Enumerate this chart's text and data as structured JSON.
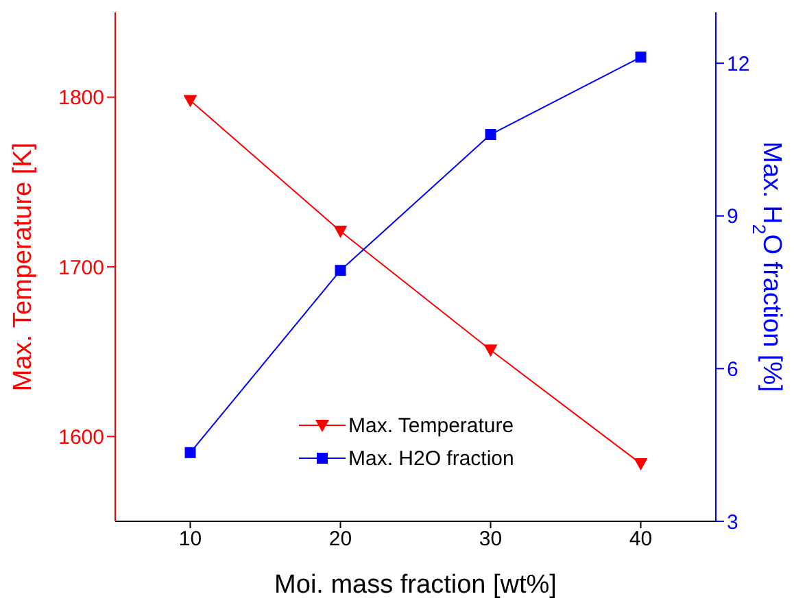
{
  "chart_data": {
    "type": "line",
    "xlabel": "Moi. mass fraction [wt%]",
    "ylabel": "Max. Temperature [K]",
    "y2label": "Max. H$_{2}$O fraction [%]",
    "x": [
      10,
      20,
      30,
      40
    ],
    "series": [
      {
        "name": "Max. Temperature",
        "color": "#ff0000",
        "values": [
          1798,
          1721,
          1651,
          1584
        ],
        "marker": "triangle"
      },
      {
        "name": "Max. H2O fraction",
        "color": "#0000ff",
        "values": [
          4.35,
          7.93,
          10.6,
          12.12
        ],
        "marker": "square",
        "axis": "y2"
      }
    ],
    "xlim": [
      5,
      45
    ],
    "xticks": [
      10,
      20,
      30,
      40
    ],
    "ylim": [
      1550,
      1850
    ],
    "yticks": [
      1600,
      1700,
      1800
    ],
    "y2lim": [
      3,
      13
    ],
    "y2ticks": [
      3,
      6,
      9,
      12
    ],
    "grid": false,
    "legend": "bottom",
    "line_style": "solid"
  }
}
